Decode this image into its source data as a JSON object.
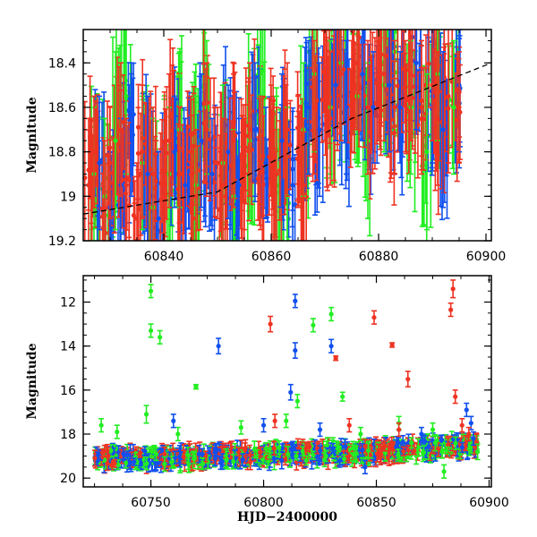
{
  "chart_data": [
    {
      "type": "scatter",
      "panel": "top",
      "title": "",
      "xlabel": "",
      "ylabel": "Magnitude",
      "xlim": [
        60825,
        60901
      ],
      "ylim": [
        19.2,
        18.25
      ],
      "y_inverted": true,
      "xticks": [
        60840,
        60860,
        60880,
        60900
      ],
      "yticks": [
        18.4,
        18.6,
        18.8,
        19,
        19.2
      ],
      "ytick_labels": [
        "18.4",
        "18.6",
        "18.8",
        "19",
        "19.2"
      ],
      "grid": false,
      "error_bars": true,
      "trend_line": {
        "style": "dashed",
        "color": "#000000",
        "points": [
          [
            60825,
            19.08
          ],
          [
            60850,
            18.98
          ],
          [
            60875,
            18.65
          ],
          [
            60901,
            18.4
          ]
        ]
      },
      "series": [
        {
          "color": "#22ee22",
          "points": [
            [
              60827,
              18.9,
              0.3
            ],
            [
              60829,
              19.0,
              0.35
            ],
            [
              60831,
              18.75,
              0.4
            ],
            [
              60833,
              18.55,
              0.35
            ],
            [
              60836,
              18.85,
              0.3
            ],
            [
              60838,
              19.05,
              0.4
            ],
            [
              60841,
              18.9,
              0.3
            ],
            [
              60843,
              18.7,
              0.35
            ],
            [
              60846,
              18.95,
              0.4
            ],
            [
              60848,
              18.6,
              0.3
            ],
            [
              60851,
              18.85,
              0.35
            ],
            [
              60853,
              19.0,
              0.3
            ],
            [
              60856,
              18.75,
              0.35
            ],
            [
              60858,
              18.55,
              0.3
            ],
            [
              60861,
              18.9,
              0.35
            ],
            [
              60863,
              19.0,
              0.4
            ],
            [
              60866,
              18.7,
              0.3
            ],
            [
              60868,
              18.45,
              0.35
            ],
            [
              60871,
              18.6,
              0.3
            ],
            [
              60873,
              18.4,
              0.35
            ],
            [
              60876,
              18.55,
              0.3
            ],
            [
              60878,
              18.75,
              0.35
            ],
            [
              60881,
              18.5,
              0.3
            ],
            [
              60883,
              18.35,
              0.35
            ],
            [
              60886,
              18.6,
              0.3
            ],
            [
              60889,
              18.8,
              0.35
            ],
            [
              60891,
              18.45,
              0.3
            ],
            [
              60894,
              18.6,
              0.3
            ]
          ]
        },
        {
          "color": "#1150ee",
          "points": [
            [
              60828,
              18.85,
              0.3
            ],
            [
              60830,
              19.05,
              0.25
            ],
            [
              60832,
              18.95,
              0.3
            ],
            [
              60834,
              18.7,
              0.3
            ],
            [
              60837,
              18.9,
              0.35
            ],
            [
              60839,
              19.1,
              0.3
            ],
            [
              60842,
              18.8,
              0.25
            ],
            [
              60844,
              18.95,
              0.3
            ],
            [
              60847,
              18.75,
              0.3
            ],
            [
              60849,
              18.9,
              0.25
            ],
            [
              60852,
              18.8,
              0.3
            ],
            [
              60854,
              18.95,
              0.3
            ],
            [
              60857,
              18.7,
              0.3
            ],
            [
              60859,
              18.85,
              0.25
            ],
            [
              60862,
              18.75,
              0.3
            ],
            [
              60864,
              18.95,
              0.25
            ],
            [
              60867,
              18.6,
              0.3
            ],
            [
              60869,
              18.7,
              0.3
            ],
            [
              60872,
              18.5,
              0.25
            ],
            [
              60874,
              18.6,
              0.3
            ],
            [
              60877,
              18.45,
              0.3
            ],
            [
              60879,
              18.6,
              0.25
            ],
            [
              60882,
              18.5,
              0.3
            ],
            [
              60884,
              18.6,
              0.25
            ],
            [
              60887,
              18.4,
              0.3
            ],
            [
              60890,
              18.55,
              0.3
            ],
            [
              60892,
              18.7,
              0.35
            ],
            [
              60895,
              18.5,
              0.3
            ]
          ]
        },
        {
          "color": "#ee3322",
          "points": [
            [
              60826,
              18.95,
              0.3
            ],
            [
              60827,
              18.8,
              0.25
            ],
            [
              60829,
              19.05,
              0.3
            ],
            [
              60830,
              18.85,
              0.25
            ],
            [
              60832,
              18.7,
              0.3
            ],
            [
              60833,
              18.95,
              0.3
            ],
            [
              60835,
              19.1,
              0.25
            ],
            [
              60836,
              18.8,
              0.3
            ],
            [
              60838,
              18.9,
              0.3
            ],
            [
              60840,
              19.0,
              0.25
            ],
            [
              60841,
              18.75,
              0.3
            ],
            [
              60843,
              18.9,
              0.3
            ],
            [
              60845,
              18.8,
              0.25
            ],
            [
              60846,
              19.0,
              0.3
            ],
            [
              60848,
              18.7,
              0.3
            ],
            [
              60850,
              18.85,
              0.25
            ],
            [
              60851,
              18.95,
              0.3
            ],
            [
              60853,
              18.75,
              0.3
            ],
            [
              60855,
              18.9,
              0.25
            ],
            [
              60856,
              18.7,
              0.3
            ],
            [
              60858,
              18.85,
              0.3
            ],
            [
              60860,
              18.75,
              0.25
            ],
            [
              60861,
              18.9,
              0.3
            ],
            [
              60863,
              18.7,
              0.3
            ],
            [
              60865,
              18.8,
              0.25
            ],
            [
              60866,
              18.95,
              0.3
            ],
            [
              60868,
              18.6,
              0.3
            ],
            [
              60870,
              18.5,
              0.25
            ],
            [
              60871,
              18.65,
              0.3
            ],
            [
              60873,
              18.45,
              0.3
            ],
            [
              60875,
              18.55,
              0.25
            ],
            [
              60876,
              18.4,
              0.3
            ],
            [
              60878,
              18.6,
              0.3
            ],
            [
              60880,
              18.5,
              0.25
            ],
            [
              60881,
              18.45,
              0.3
            ],
            [
              60883,
              18.6,
              0.3
            ],
            [
              60885,
              18.55,
              0.25
            ],
            [
              60886,
              18.45,
              0.3
            ],
            [
              60888,
              18.6,
              0.3
            ],
            [
              60890,
              18.5,
              0.25
            ],
            [
              60891,
              18.65,
              0.3
            ],
            [
              60893,
              18.55,
              0.3
            ],
            [
              60895,
              18.6,
              0.25
            ]
          ]
        }
      ]
    },
    {
      "type": "scatter",
      "panel": "bottom",
      "title": "",
      "xlabel": "HJD−2400000",
      "ylabel": "Magnitude",
      "xlim": [
        60720,
        60901
      ],
      "ylim": [
        20.4,
        10.8
      ],
      "y_inverted": true,
      "xticks": [
        60750,
        60800,
        60850,
        60900
      ],
      "yticks": [
        12,
        14,
        16,
        18,
        20
      ],
      "ytick_labels": [
        "12",
        "14",
        "16",
        "18",
        "20"
      ],
      "grid": false,
      "error_bars": true,
      "baseline_trend": {
        "x": [
          60725,
          60760,
          60800,
          60840,
          60870,
          60895
        ],
        "y": [
          19.1,
          19.05,
          18.95,
          18.85,
          18.65,
          18.5
        ],
        "scatter": 0.35
      },
      "series": [
        {
          "color": "#22ee22",
          "points": [
            [
              60750,
              11.5,
              0.3
            ],
            [
              60750,
              13.3,
              0.3
            ],
            [
              60754,
              13.6,
              0.3
            ],
            [
              60770,
              15.85,
              0.1
            ],
            [
              60815,
              16.5,
              0.3
            ],
            [
              60822,
              13.05,
              0.3
            ],
            [
              60830,
              12.55,
              0.3
            ],
            [
              60835,
              16.3,
              0.2
            ],
            [
              60728,
              17.6,
              0.3
            ],
            [
              60735,
              17.9,
              0.3
            ],
            [
              60748,
              17.1,
              0.4
            ],
            [
              60762,
              18.0,
              0.3
            ],
            [
              60790,
              17.7,
              0.3
            ],
            [
              60810,
              17.4,
              0.3
            ],
            [
              60843,
              18.0,
              0.3
            ],
            [
              60860,
              17.5,
              0.3
            ],
            [
              60875,
              17.8,
              0.3
            ],
            [
              60880,
              19.7,
              0.3
            ]
          ]
        },
        {
          "color": "#1150ee",
          "points": [
            [
              60780,
              14.0,
              0.35
            ],
            [
              60814,
              11.95,
              0.3
            ],
            [
              60814,
              14.2,
              0.35
            ],
            [
              60812,
              16.1,
              0.35
            ],
            [
              60830,
              14.0,
              0.3
            ],
            [
              60760,
              17.4,
              0.3
            ],
            [
              60800,
              17.6,
              0.3
            ],
            [
              60825,
              17.8,
              0.3
            ],
            [
              60845,
              19.5,
              0.3
            ],
            [
              60870,
              18.0,
              0.3
            ],
            [
              60890,
              16.9,
              0.3
            ],
            [
              60892,
              17.5,
              0.3
            ],
            [
              60893,
              18.2,
              0.3
            ]
          ]
        },
        {
          "color": "#ee3322",
          "points": [
            [
              60803,
              13.0,
              0.35
            ],
            [
              60832,
              14.55,
              0.1
            ],
            [
              60849,
              12.7,
              0.3
            ],
            [
              60857,
              13.95,
              0.1
            ],
            [
              60864,
              15.5,
              0.35
            ],
            [
              60884,
              11.4,
              0.4
            ],
            [
              60883,
              12.35,
              0.3
            ],
            [
              60885,
              16.3,
              0.3
            ],
            [
              60805,
              17.4,
              0.3
            ],
            [
              60838,
              17.6,
              0.3
            ],
            [
              60860,
              17.8,
              0.3
            ],
            [
              60888,
              17.6,
              0.3
            ],
            [
              60891,
              18.0,
              0.3
            ]
          ]
        }
      ]
    }
  ]
}
